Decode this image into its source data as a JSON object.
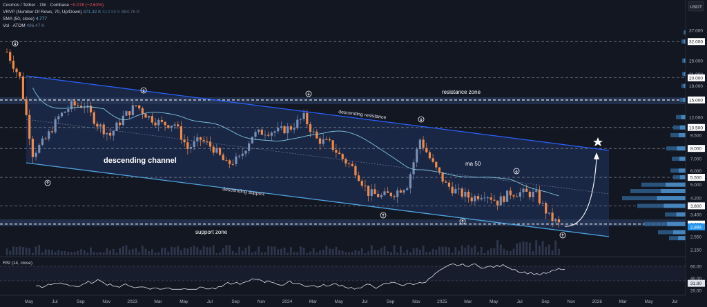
{
  "header": {
    "symbol": "Cosmos / Tether · 1W · Coinbase",
    "change": "−0.078 (−2.62%)",
    "vrvp_label": "VRVP (Number Of Rows, 70, Up/Down)",
    "vrvp_values": [
      "371.32 K",
      "513.95 K",
      "884.76 K"
    ],
    "sma_label": "SMA (50, close)",
    "sma_value": "4.777",
    "vol_label": "Vol · ATOM",
    "vol_value": "496.47 K"
  },
  "rsi_label": "RSI (14, close)",
  "colors": {
    "background": "#131722",
    "up": "#7a8fb5",
    "down": "#f08a4b",
    "channel_fill": "#1c2a4a",
    "channel_line": "#2962ff",
    "support_line": "#4fa3e0",
    "ma": "#7ec8e3",
    "zone": "#2a3a5c"
  },
  "chart_data": {
    "type": "candlestick",
    "price_axis_unit": "USDT",
    "y_ticks": [
      "37.000",
      "32.000",
      "25.000",
      "21.000",
      "20.000",
      "18.000",
      "15.000",
      "12.000",
      "10.500",
      "9.500",
      "8.000",
      "7.000",
      "6.000",
      "5.500",
      "5.000",
      "4.200",
      "3.800",
      "3.400",
      "3.000",
      "2.894",
      "2.550",
      "2.150"
    ],
    "highlighted_ticks": [
      "32.000",
      "20.000",
      "15.000",
      "10.500",
      "8.000",
      "5.500",
      "3.800",
      "3.000",
      "2.894"
    ],
    "x_ticks": [
      "May",
      "Jul",
      "Sep",
      "Nov",
      "2023",
      "Mar",
      "May",
      "Jul",
      "Sep",
      "Nov",
      "2024",
      "Mar",
      "May",
      "Jul",
      "Sep",
      "Nov",
      "2025",
      "Mar",
      "May",
      "Jul",
      "Sep",
      "Nov",
      "2026",
      "Mar",
      "May",
      "Jul"
    ],
    "rsi_ticks": [
      "60.00",
      "40.00",
      "20.00"
    ],
    "rsi_current": "31.80",
    "current_price": "2.894",
    "horizontal_levels": [
      32,
      20,
      15,
      10.5,
      8,
      5.5,
      3.8,
      3.0
    ],
    "annotations": {
      "descending_channel": "descending channel",
      "descending_resistance": "descending resistance",
      "descending_support": "descending support",
      "resistance_zone": "resistance zone",
      "support_zone": "support zone",
      "ma50": "ma 50"
    },
    "price_path": [
      {
        "t": "2022-04",
        "p": 28
      },
      {
        "t": "2022-05",
        "p": 20
      },
      {
        "t": "2022-06",
        "p": 7.5
      },
      {
        "t": "2022-07",
        "p": 9
      },
      {
        "t": "2022-08",
        "p": 12
      },
      {
        "t": "2022-09",
        "p": 14
      },
      {
        "t": "2022-10",
        "p": 14
      },
      {
        "t": "2022-11",
        "p": 11
      },
      {
        "t": "2022-12",
        "p": 9.5
      },
      {
        "t": "2023-01",
        "p": 12
      },
      {
        "t": "2023-02",
        "p": 14
      },
      {
        "t": "2023-03",
        "p": 12
      },
      {
        "t": "2023-04",
        "p": 11
      },
      {
        "t": "2023-05",
        "p": 11
      },
      {
        "t": "2023-06",
        "p": 8
      },
      {
        "t": "2023-07",
        "p": 9
      },
      {
        "t": "2023-08",
        "p": 8
      },
      {
        "t": "2023-09",
        "p": 6.5
      },
      {
        "t": "2023-10",
        "p": 7
      },
      {
        "t": "2023-11",
        "p": 9.5
      },
      {
        "t": "2023-12",
        "p": 10
      },
      {
        "t": "2024-01",
        "p": 10
      },
      {
        "t": "2024-02",
        "p": 10.5
      },
      {
        "t": "2024-03",
        "p": 12
      },
      {
        "t": "2024-04",
        "p": 9
      },
      {
        "t": "2024-05",
        "p": 8.5
      },
      {
        "t": "2024-06",
        "p": 7
      },
      {
        "t": "2024-07",
        "p": 6
      },
      {
        "t": "2024-08",
        "p": 4.5
      },
      {
        "t": "2024-09",
        "p": 4.3
      },
      {
        "t": "2024-10",
        "p": 4.5
      },
      {
        "t": "2024-11",
        "p": 5
      },
      {
        "t": "2024-12",
        "p": 9
      },
      {
        "t": "2025-01",
        "p": 6.5
      },
      {
        "t": "2025-02",
        "p": 5
      },
      {
        "t": "2025-03",
        "p": 4.5
      },
      {
        "t": "2025-04",
        "p": 4.2
      },
      {
        "t": "2025-05",
        "p": 4.5
      },
      {
        "t": "2025-06",
        "p": 4
      },
      {
        "t": "2025-07",
        "p": 4.5
      },
      {
        "t": "2025-08",
        "p": 4.5
      },
      {
        "t": "2025-09",
        "p": 4.4
      },
      {
        "t": "2025-10",
        "p": 3.3
      },
      {
        "t": "2025-11",
        "p": 2.9
      }
    ]
  }
}
